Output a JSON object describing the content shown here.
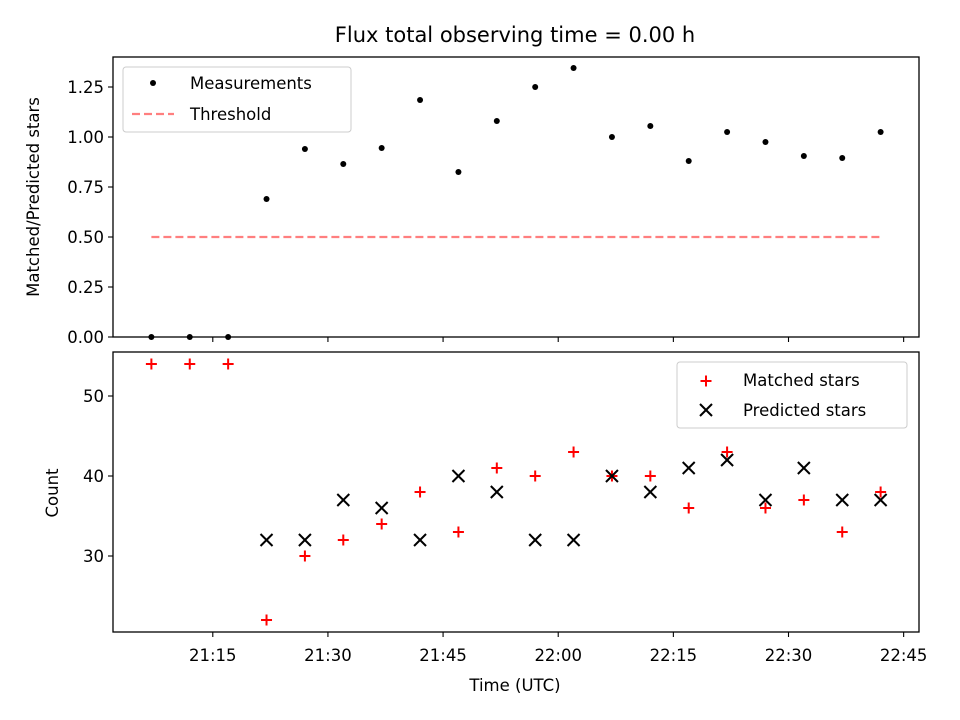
{
  "colors": {
    "measurement": "#000000",
    "threshold": "#ff7f7f",
    "matched": "#ff0000",
    "predicted": "#000000",
    "axes": "#000000",
    "legend_border": "#cccccc"
  },
  "chart_data": [
    {
      "type": "scatter",
      "title": "Flux total observing time = 0.00 h",
      "xlabel": "",
      "ylabel": "Matched/Predicted stars",
      "ylim": [
        0,
        1.4
      ],
      "yticks": [
        0.0,
        0.25,
        0.5,
        0.75,
        1.0,
        1.25
      ],
      "ytick_labels": [
        "0.00",
        "0.25",
        "0.50",
        "0.75",
        "1.00",
        "1.25"
      ],
      "grid": false,
      "legend_position": "top-left",
      "legend": [
        "Measurements",
        "Threshold"
      ],
      "series": [
        {
          "name": "Measurements",
          "marker": "dot",
          "x": [
            "21:07",
            "21:12",
            "21:17",
            "21:22",
            "21:27",
            "21:32",
            "21:37",
            "21:42",
            "21:47",
            "21:52",
            "21:57",
            "22:02",
            "22:07",
            "22:12",
            "22:17",
            "22:22",
            "22:27",
            "22:32",
            "22:37",
            "22:42"
          ],
          "y": [
            0.0,
            0.0,
            0.0,
            0.69,
            0.94,
            0.865,
            0.945,
            1.185,
            0.825,
            1.08,
            1.25,
            1.345,
            1.0,
            1.055,
            0.88,
            1.025,
            0.975,
            0.905,
            0.895,
            1.025
          ]
        },
        {
          "name": "Threshold",
          "marker": "dashed-line",
          "x": [
            "21:07",
            "22:42"
          ],
          "y": [
            0.5,
            0.5
          ]
        }
      ]
    },
    {
      "type": "scatter",
      "xlabel": "Time (UTC)",
      "ylabel": "Count",
      "ylim": [
        20.5,
        55.5
      ],
      "yticks": [
        30,
        40,
        50
      ],
      "ytick_labels": [
        "30",
        "40",
        "50"
      ],
      "xlim": [
        "21:02",
        "22:47"
      ],
      "xticks": [
        "21:15",
        "21:30",
        "21:45",
        "22:00",
        "22:15",
        "22:30",
        "22:45"
      ],
      "grid": false,
      "legend_position": "top-right",
      "legend": [
        "Matched stars",
        "Predicted stars"
      ],
      "series": [
        {
          "name": "Matched stars",
          "marker": "plus",
          "x": [
            "21:07",
            "21:12",
            "21:17",
            "21:22",
            "21:27",
            "21:32",
            "21:37",
            "21:42",
            "21:47",
            "21:52",
            "21:57",
            "22:02",
            "22:07",
            "22:12",
            "22:17",
            "22:22",
            "22:27",
            "22:32",
            "22:37",
            "22:42"
          ],
          "y": [
            54,
            54,
            54,
            22,
            30,
            32,
            34,
            38,
            33,
            41,
            40,
            43,
            40,
            40,
            36,
            43,
            36,
            37,
            33,
            38
          ]
        },
        {
          "name": "Predicted stars",
          "marker": "x",
          "x": [
            "21:22",
            "21:27",
            "21:32",
            "21:37",
            "21:42",
            "21:47",
            "21:52",
            "21:57",
            "22:02",
            "22:07",
            "22:12",
            "22:17",
            "22:22",
            "22:27",
            "22:32",
            "22:37",
            "22:42"
          ],
          "y": [
            32,
            32,
            37,
            36,
            32,
            40,
            38,
            32,
            32,
            40,
            38,
            41,
            42,
            37,
            41,
            37,
            37
          ]
        }
      ]
    }
  ]
}
